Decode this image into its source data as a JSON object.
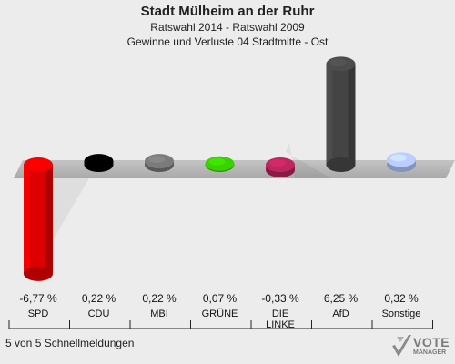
{
  "title": "Stadt Mülheim an der Ruhr",
  "subtitle1": "Ratswahl 2014 - Ratswahl 2009",
  "subtitle2": "Gewinne und Verluste 04 Stadtmitte - Ost",
  "footer": "5 von 5 Schnellmeldungen",
  "logo": {
    "word": "VOTE",
    "sub": "MANAGER"
  },
  "chart_data": {
    "type": "bar",
    "categories": [
      "SPD",
      "CDU",
      "MBI",
      "GRÜNE",
      "DIE LINKE",
      "AfD",
      "Sonstige"
    ],
    "values": [
      -6.77,
      0.22,
      0.22,
      0.07,
      -0.33,
      6.25,
      0.32
    ],
    "value_labels": [
      "-6,77 %",
      "0,22 %",
      "0,22 %",
      "0,07 %",
      "-0,33 %",
      "6,25 %",
      "0,32 %"
    ],
    "colors": [
      "#dd0000",
      "#000000",
      "#6e6e6e",
      "#33bb00",
      "#aa2255",
      "#444444",
      "#a8b8e8"
    ],
    "ylim": [
      -6.77,
      6.25
    ]
  }
}
